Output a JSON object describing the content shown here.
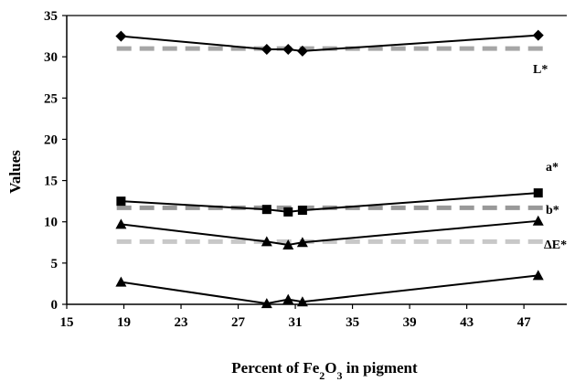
{
  "chart_data": {
    "type": "line",
    "title": "",
    "xlabel": "Percent of Fe2O3 in pigment",
    "xlabel_parts": {
      "prefix": "Percent of Fe",
      "sub1": "2",
      "mid": "O",
      "sub2": "3",
      "suffix": " in pigment"
    },
    "ylabel": "Values",
    "xlim": [
      15,
      50
    ],
    "ylim": [
      0,
      35
    ],
    "xticks": [
      15,
      19,
      23,
      27,
      31,
      35,
      39,
      43,
      47
    ],
    "yticks": [
      0,
      5,
      10,
      15,
      20,
      25,
      30,
      35
    ],
    "grid": false,
    "series": [
      {
        "name": "L*",
        "marker": "diamond",
        "x": [
          18.8,
          29.0,
          30.5,
          31.5,
          48.0
        ],
        "y": [
          32.5,
          30.9,
          30.9,
          30.7,
          32.6
        ]
      },
      {
        "name": "a*",
        "marker": "square",
        "x": [
          18.8,
          29.0,
          30.5,
          31.5,
          48.0
        ],
        "y": [
          12.5,
          11.5,
          11.2,
          11.4,
          13.5
        ]
      },
      {
        "name": "b*",
        "marker": "triangle",
        "x": [
          18.8,
          29.0,
          30.5,
          31.5,
          48.0
        ],
        "y": [
          9.7,
          7.6,
          7.2,
          7.5,
          10.1
        ]
      },
      {
        "name": "ΔE*",
        "marker": "triangle",
        "x": [
          18.8,
          29.0,
          30.5,
          31.5,
          48.0
        ],
        "y": [
          2.7,
          0.1,
          0.6,
          0.3,
          3.5
        ]
      }
    ],
    "reference_lines": [
      {
        "y": 31.0,
        "color": "#a6a6a6"
      },
      {
        "y": 11.7,
        "color": "#999999"
      },
      {
        "y": 7.6,
        "color": "#c8c8c8"
      }
    ],
    "colors": {
      "series_line": "#000000",
      "marker": "#000000"
    }
  }
}
